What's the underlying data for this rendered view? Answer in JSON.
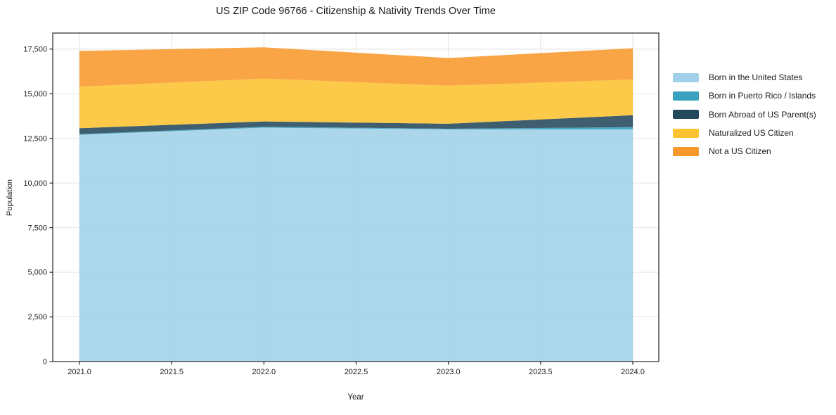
{
  "chart_data": {
    "type": "area",
    "stacked": true,
    "title": "US ZIP Code 96766 - Citizenship & Nativity Trends Over Time",
    "xlabel": "Year",
    "ylabel": "Population",
    "grid": true,
    "legend_position": "right-outside",
    "x": [
      2021,
      2022,
      2023,
      2024
    ],
    "xlim": [
      2020.855,
      2024.141
    ],
    "ylim": [
      0,
      18400
    ],
    "x_tick_values": [
      2021.0,
      2021.5,
      2022.0,
      2022.5,
      2023.0,
      2023.5,
      2024.0
    ],
    "x_tick_labels": [
      "2021.0",
      "2021.5",
      "2022.0",
      "2022.5",
      "2023.0",
      "2023.5",
      "2024.0"
    ],
    "y_tick_values": [
      0,
      2500,
      5000,
      7500,
      10000,
      12500,
      15000,
      17500
    ],
    "y_tick_labels": [
      "0",
      "2,500",
      "5,000",
      "7,500",
      "10,000",
      "12,500",
      "15,000",
      "17,500"
    ],
    "series": [
      {
        "name": "Born in the United States",
        "color": "#a0d1e8",
        "values": [
          12700,
          13100,
          13000,
          13000
        ]
      },
      {
        "name": "Born in Puerto Rico / Islands",
        "color": "#3aa1bf",
        "values": [
          40,
          50,
          40,
          130
        ]
      },
      {
        "name": "Born Abroad of US Parent(s)",
        "color": "#24495c",
        "values": [
          330,
          300,
          280,
          670
        ]
      },
      {
        "name": "Naturalized US Citizen",
        "color": "#fdc230",
        "values": [
          2330,
          2400,
          2130,
          2000
        ]
      },
      {
        "name": "Not a US Citizen",
        "color": "#f8982b",
        "values": [
          2000,
          1750,
          1550,
          1750
        ]
      }
    ],
    "totals_by_year": [
      17400,
      17600,
      17000,
      17550
    ],
    "colors": {
      "grid": "#e3e3e3",
      "frame": "#262626",
      "text": "#1a1a1a"
    }
  }
}
